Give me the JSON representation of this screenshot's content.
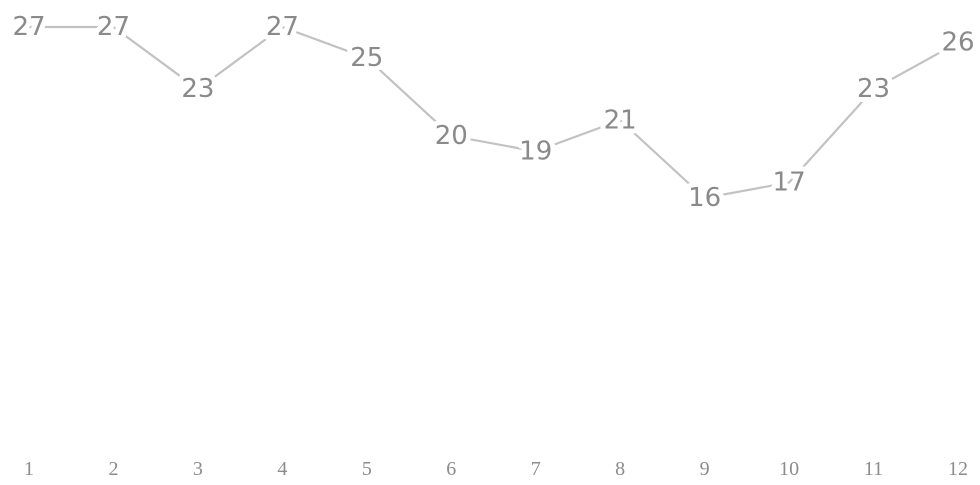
{
  "chart_data": {
    "type": "line",
    "categories": [
      "1",
      "2",
      "3",
      "4",
      "5",
      "6",
      "7",
      "8",
      "9",
      "10",
      "11",
      "12"
    ],
    "series": [
      {
        "values": [
          27,
          27,
          23,
          27,
          25,
          20,
          19,
          21,
          16,
          17,
          23,
          26
        ],
        "color": "#c2c2c2"
      }
    ],
    "data_labels": true,
    "data_label_color": "#8a8a8a",
    "tick_label_color": "#8c8c8c",
    "grid": false,
    "legend": "none"
  }
}
